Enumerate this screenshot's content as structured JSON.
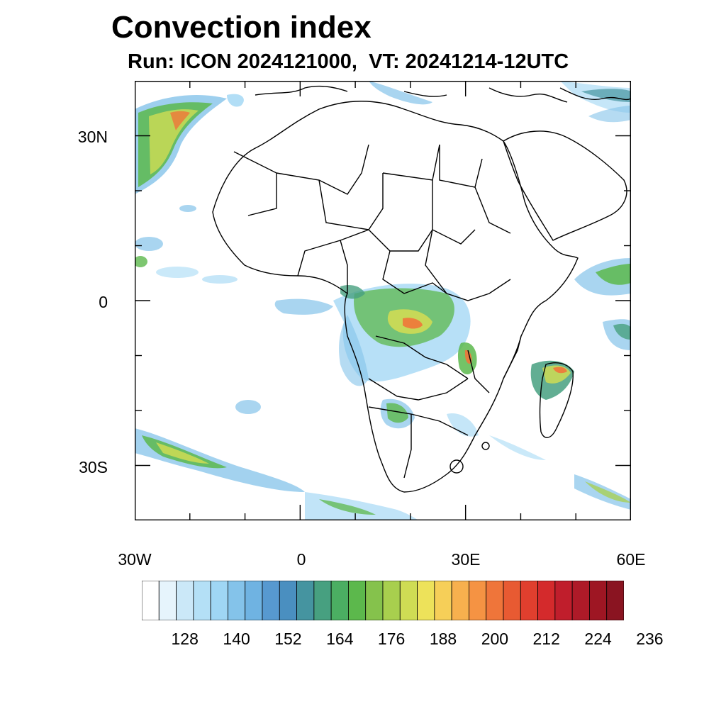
{
  "header": {
    "title": "Convection index",
    "subtitle": "Run: ICON 2024121000,  VT: 20241214-12UTC"
  },
  "map": {
    "lon_range": [
      -30,
      60
    ],
    "lat_range": [
      -40,
      40
    ],
    "y_ticks": [
      {
        "lat": 30,
        "label": "30N"
      },
      {
        "lat": 0,
        "label": "0"
      },
      {
        "lat": -30,
        "label": "30S"
      }
    ],
    "x_ticks": [
      {
        "lon": -30,
        "label": "30W"
      },
      {
        "lon": 0,
        "label": "0"
      },
      {
        "lon": 30,
        "label": "30E"
      },
      {
        "lon": 60,
        "label": "60E"
      }
    ]
  },
  "colorbar": {
    "colors": [
      "#ffffff",
      "#e6f4fc",
      "#cbe8f8",
      "#b4e0f6",
      "#9fd6f4",
      "#84c3ea",
      "#6fb3e2",
      "#5799d0",
      "#4a8fc0",
      "#4594a0",
      "#47a080",
      "#4bae62",
      "#5cb84c",
      "#85c24c",
      "#a8cf4e",
      "#cfdc54",
      "#ede25a",
      "#f6cf58",
      "#f7b04e",
      "#f59343",
      "#ef753a",
      "#e85a32",
      "#e03f2e",
      "#d42a2c",
      "#c01e2c",
      "#ae1a28",
      "#9e1623",
      "#8a1421"
    ],
    "labels": [
      "128",
      "140",
      "152",
      "164",
      "176",
      "188",
      "200",
      "212",
      "224",
      "236"
    ]
  }
}
